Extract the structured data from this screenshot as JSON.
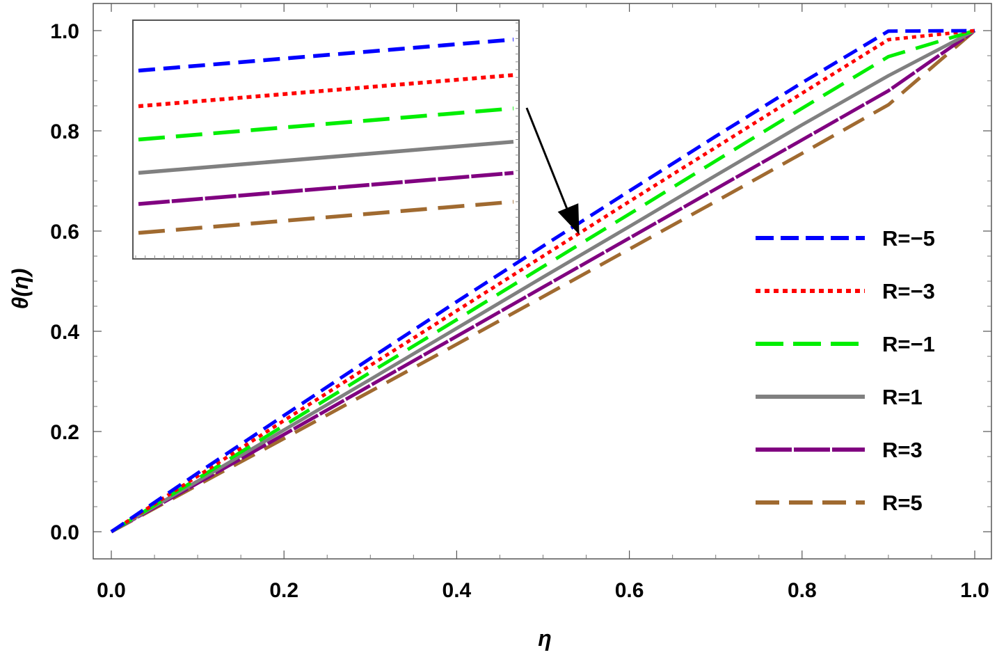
{
  "chart_data": {
    "type": "line",
    "xlabel": "η",
    "ylabel": "θ(η)",
    "xlim": [
      0.0,
      1.0
    ],
    "ylim": [
      0.0,
      1.0
    ],
    "xticks": [
      "0.0",
      "0.2",
      "0.4",
      "0.6",
      "0.8",
      "1.0"
    ],
    "yticks": [
      "0.0",
      "0.2",
      "0.4",
      "0.6",
      "0.8",
      "1.0"
    ],
    "grid": false,
    "legend_position": "right",
    "x": [
      0.0,
      0.1,
      0.2,
      0.3,
      0.4,
      0.5,
      0.6,
      0.7,
      0.8,
      0.9,
      1.0
    ],
    "series": [
      {
        "name": "R=−5",
        "color": "#0000ff",
        "style": "dashed",
        "values": [
          0.0,
          0.117,
          0.232,
          0.346,
          0.459,
          0.57,
          0.68,
          0.789,
          0.896,
          0.999,
          1.0
        ]
      },
      {
        "name": "R=−3",
        "color": "#ff0000",
        "style": "dotted",
        "values": [
          0.0,
          0.111,
          0.222,
          0.332,
          0.441,
          0.55,
          0.659,
          0.767,
          0.875,
          0.982,
          1.0
        ]
      },
      {
        "name": "R=−1",
        "color": "#00ee00",
        "style": "long-dashed",
        "values": [
          0.0,
          0.106,
          0.212,
          0.318,
          0.423,
          0.529,
          0.634,
          0.74,
          0.845,
          0.948,
          1.0
        ]
      },
      {
        "name": "R=1",
        "color": "#808080",
        "style": "solid",
        "values": [
          0.0,
          0.101,
          0.203,
          0.304,
          0.406,
          0.508,
          0.609,
          0.711,
          0.812,
          0.91,
          1.0
        ]
      },
      {
        "name": "R=3",
        "color": "#800080",
        "style": "dash-dot",
        "values": [
          0.0,
          0.097,
          0.194,
          0.292,
          0.39,
          0.488,
          0.586,
          0.684,
          0.782,
          0.88,
          1.0
        ]
      },
      {
        "name": "R=5",
        "color": "#a06a30",
        "style": "long-dashed",
        "values": [
          0.0,
          0.093,
          0.186,
          0.28,
          0.374,
          0.469,
          0.564,
          0.659,
          0.755,
          0.852,
          1.0
        ]
      }
    ],
    "inset": {
      "description_type": "zoom",
      "start_values": [
        0.93,
        0.85,
        0.775,
        0.7,
        0.63,
        0.565
      ],
      "end_values": [
        1.0,
        0.92,
        0.845,
        0.77,
        0.7,
        0.635
      ]
    },
    "annotation": {
      "type": "arrow",
      "points_to": [
        0.55,
        0.6
      ]
    }
  }
}
